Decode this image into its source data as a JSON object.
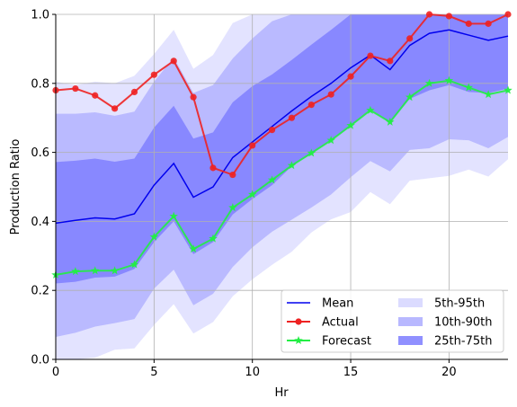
{
  "chart_data": {
    "type": "line",
    "title": "",
    "xlabel": "Hr",
    "ylabel": "Production Ratio",
    "xlim": [
      0,
      23
    ],
    "ylim": [
      0,
      1.0
    ],
    "x_ticks": [
      0,
      5,
      10,
      15,
      20
    ],
    "y_ticks": [
      0.0,
      0.2,
      0.4,
      0.6,
      0.8,
      1.0
    ],
    "x_tick_labels": [
      "0",
      "5",
      "10",
      "15",
      "20"
    ],
    "y_tick_labels": [
      "0.0",
      "0.2",
      "0.4",
      "0.6",
      "0.8",
      "1.0"
    ],
    "grid": true,
    "legend_position": "lower-right",
    "x": [
      0,
      1,
      2,
      3,
      4,
      5,
      6,
      7,
      8,
      9,
      10,
      11,
      12,
      13,
      14,
      15,
      16,
      17,
      18,
      19,
      20,
      21,
      22,
      23
    ],
    "series": [
      {
        "name": "Mean",
        "color": "#0000ee",
        "marker": "none",
        "values": [
          0.395,
          0.403,
          0.41,
          0.407,
          0.422,
          0.505,
          0.568,
          0.47,
          0.5,
          0.585,
          0.63,
          0.675,
          0.72,
          0.762,
          0.8,
          0.845,
          0.882,
          0.84,
          0.91,
          0.945,
          0.955,
          0.94,
          0.925,
          0.937
        ]
      },
      {
        "name": "Actual",
        "color": "#ee2222",
        "marker": "circle",
        "values": [
          0.78,
          0.785,
          0.765,
          0.727,
          0.775,
          0.825,
          0.865,
          0.76,
          0.555,
          0.535,
          0.62,
          0.665,
          0.7,
          0.738,
          0.768,
          0.82,
          0.88,
          0.865,
          0.93,
          1.0,
          0.995,
          0.973,
          0.973,
          1.0
        ]
      },
      {
        "name": "Forecast",
        "color": "#22ee44",
        "marker": "star",
        "values": [
          0.245,
          0.255,
          0.257,
          0.257,
          0.275,
          0.355,
          0.415,
          0.32,
          0.35,
          0.44,
          0.478,
          0.52,
          0.562,
          0.598,
          0.635,
          0.678,
          0.722,
          0.688,
          0.76,
          0.8,
          0.808,
          0.788,
          0.768,
          0.78
        ]
      }
    ],
    "bands": [
      {
        "name": "5th-95th",
        "color": "#ccccff",
        "opacity": 0.55,
        "lower": [
          0.0,
          0.0,
          0.005,
          0.028,
          0.032,
          0.1,
          0.16,
          0.075,
          0.108,
          0.183,
          0.232,
          0.274,
          0.312,
          0.368,
          0.406,
          0.427,
          0.485,
          0.45,
          0.518,
          0.525,
          0.532,
          0.55,
          0.53,
          0.58
        ],
        "upper": [
          0.805,
          0.795,
          0.805,
          0.8,
          0.822,
          0.885,
          0.955,
          0.842,
          0.882,
          0.975,
          1.0,
          1.0,
          1.0,
          1.0,
          1.0,
          1.0,
          1.0,
          1.0,
          1.0,
          1.0,
          1.0,
          1.0,
          1.0,
          1.0
        ]
      },
      {
        "name": "10th-90th",
        "color": "#8888ff",
        "opacity": 0.45,
        "lower": [
          0.065,
          0.077,
          0.095,
          0.105,
          0.117,
          0.205,
          0.26,
          0.157,
          0.19,
          0.268,
          0.325,
          0.37,
          0.405,
          0.44,
          0.478,
          0.528,
          0.575,
          0.545,
          0.607,
          0.612,
          0.638,
          0.635,
          0.612,
          0.645
        ],
        "upper": [
          0.712,
          0.712,
          0.716,
          0.706,
          0.718,
          0.805,
          0.875,
          0.772,
          0.795,
          0.872,
          0.93,
          0.98,
          1.0,
          1.0,
          1.0,
          1.0,
          1.0,
          1.0,
          1.0,
          1.0,
          1.0,
          1.0,
          1.0,
          1.0
        ]
      },
      {
        "name": "25th-75th",
        "color": "#5555ff",
        "opacity": 0.5,
        "lower": [
          0.22,
          0.225,
          0.237,
          0.24,
          0.262,
          0.34,
          0.4,
          0.305,
          0.34,
          0.42,
          0.465,
          0.505,
          0.56,
          0.596,
          0.636,
          0.675,
          0.725,
          0.685,
          0.755,
          0.78,
          0.795,
          0.775,
          0.772,
          0.785
        ],
        "upper": [
          0.572,
          0.576,
          0.582,
          0.573,
          0.582,
          0.672,
          0.735,
          0.64,
          0.658,
          0.745,
          0.792,
          0.826,
          0.868,
          0.912,
          0.955,
          1.0,
          1.0,
          1.0,
          1.0,
          1.0,
          1.0,
          1.0,
          1.0,
          1.0
        ]
      }
    ],
    "legend": {
      "col1": [
        "Mean",
        "Actual",
        "Forecast"
      ],
      "col2": [
        "5th-95th",
        "10th-90th",
        "25th-75th"
      ]
    }
  }
}
